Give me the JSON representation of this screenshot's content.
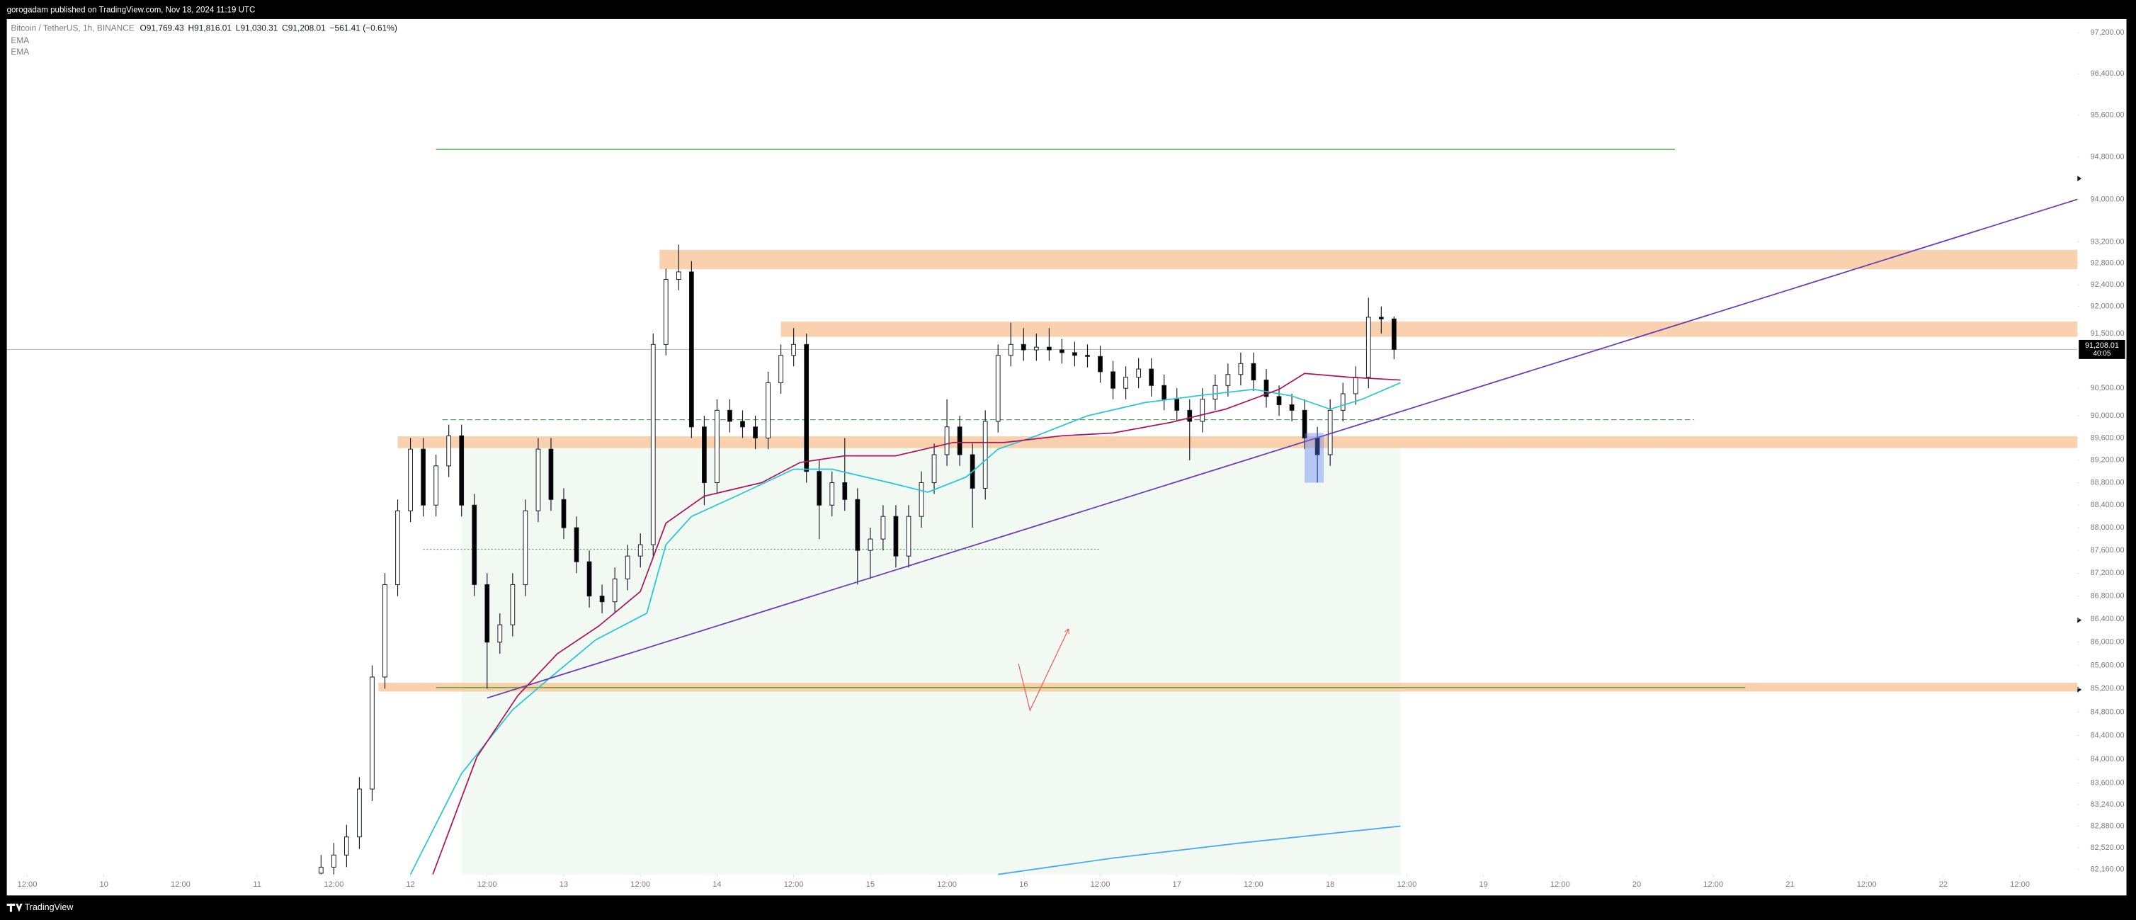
{
  "header": "gorogadam published on TradingView.com, Nov 18, 2024 11:19 UTC",
  "footer": "TradingView",
  "chart_data": {
    "type": "candlestick",
    "symbol": "Bitcoin / TetherUS, 1h, BINANCE",
    "legend_values": [
      "O91,769.43",
      "H91,816.01",
      "L91,030.31",
      "C91,208.01",
      "−561.41 (−0.61%)"
    ],
    "up_color": "#ffffff",
    "down_color": "#000000",
    "wick_color": "#131722",
    "x": [
      46,
      48,
      50,
      52,
      54,
      56,
      58,
      60,
      62,
      64,
      66,
      68,
      70,
      72,
      74,
      76,
      78,
      80,
      82,
      84,
      86,
      88,
      90,
      92,
      94,
      96,
      98,
      100,
      102,
      104,
      106,
      108,
      110,
      112,
      114,
      116,
      118,
      120,
      122,
      124,
      126,
      128,
      130,
      132,
      134,
      136,
      138,
      140,
      142,
      144,
      146,
      148,
      150,
      152,
      154,
      156,
      158,
      160,
      162,
      164,
      166,
      168,
      170,
      172,
      174,
      176,
      178,
      180,
      182,
      184,
      186,
      188,
      190,
      192,
      194,
      196,
      198,
      200,
      202,
      204,
      206,
      208,
      210,
      212,
      214
    ],
    "open": [
      82100,
      82200,
      82400,
      82700,
      83500,
      85400,
      87000,
      88300,
      89400,
      88400,
      89100,
      89640,
      88400,
      87000,
      86000,
      86300,
      87000,
      88300,
      89400,
      88500,
      88000,
      87400,
      86800,
      86700,
      87100,
      87500,
      87700,
      91300,
      92500,
      92640,
      89800,
      88800,
      90100,
      89900,
      89800,
      89600,
      90600,
      91100,
      91300,
      89000,
      88400,
      88800,
      88500,
      87600,
      87800,
      88200,
      87500,
      88200,
      88800,
      89300,
      89800,
      89300,
      88700,
      89900,
      91100,
      91300,
      91200,
      91250,
      91200,
      91150,
      91100,
      91080,
      90800,
      90500,
      90700,
      90850,
      90550,
      90300,
      90100,
      89900,
      90300,
      90550,
      90750,
      90950,
      90650,
      90350,
      90200,
      90100,
      89600,
      89300,
      90100,
      90400,
      90700,
      91800,
      91769.43
    ],
    "high": [
      82400,
      82600,
      82900,
      83700,
      85600,
      87200,
      88500,
      89600,
      89600,
      89300,
      89840,
      89840,
      88600,
      87200,
      86500,
      87200,
      88500,
      89600,
      89600,
      88700,
      88200,
      87600,
      87000,
      87300,
      87700,
      87900,
      91500,
      92700,
      93150,
      92840,
      90000,
      90300,
      90300,
      90100,
      90000,
      90800,
      91300,
      91600,
      91500,
      89200,
      89000,
      89600,
      88700,
      88000,
      88400,
      88400,
      88400,
      89000,
      89500,
      90300,
      90000,
      89500,
      90100,
      91300,
      91700,
      91600,
      91500,
      91600,
      91400,
      91350,
      91300,
      91280,
      91000,
      90900,
      91050,
      91050,
      90750,
      90500,
      90300,
      90500,
      90750,
      90950,
      91150,
      91150,
      90850,
      90550,
      90400,
      90300,
      89800,
      90300,
      90600,
      90900,
      92160,
      92000,
      91816.01
    ],
    "low": [
      82080,
      82080,
      82200,
      82500,
      83300,
      85200,
      86800,
      88100,
      88200,
      88200,
      88900,
      88200,
      86800,
      85200,
      85800,
      86100,
      86800,
      88100,
      88300,
      87800,
      87200,
      86600,
      86500,
      86500,
      86900,
      87300,
      87500,
      91100,
      92300,
      89600,
      88400,
      88600,
      89700,
      89600,
      89400,
      89400,
      90400,
      90900,
      88800,
      87800,
      88200,
      88300,
      87000,
      87100,
      87600,
      87300,
      87300,
      88000,
      88600,
      89100,
      89100,
      88000,
      88500,
      89700,
      90900,
      91000,
      91000,
      91000,
      90950,
      90900,
      90880,
      90600,
      90300,
      90300,
      90500,
      90350,
      90100,
      89900,
      89200,
      89700,
      90100,
      90350,
      90550,
      90450,
      90150,
      90000,
      89900,
      89400,
      88800,
      89100,
      89900,
      90200,
      90500,
      91500,
      91030.31
    ],
    "close": [
      82200,
      82400,
      82700,
      83500,
      85400,
      87000,
      88300,
      89400,
      88400,
      89100,
      89640,
      88400,
      87000,
      86000,
      86300,
      87000,
      88300,
      89400,
      88500,
      88000,
      87400,
      86800,
      86700,
      87100,
      87500,
      87700,
      91300,
      92500,
      92640,
      89800,
      88800,
      90100,
      89900,
      89800,
      89600,
      90600,
      91100,
      91300,
      89000,
      88400,
      88800,
      88500,
      87600,
      87800,
      88200,
      87500,
      88200,
      88800,
      89300,
      89800,
      89300,
      88700,
      89900,
      91100,
      91300,
      91200,
      91250,
      91200,
      91150,
      91100,
      91080,
      90800,
      90500,
      90700,
      90850,
      90550,
      90300,
      90100,
      89900,
      90300,
      90550,
      90750,
      90950,
      90650,
      90350,
      90200,
      90100,
      89600,
      89300,
      90100,
      90400,
      90700,
      91800,
      91769.43,
      91208.01
    ],
    "series": [
      {
        "name": "EMA",
        "color": "#26c6da",
        "x": [
          60,
          68,
          76,
          82,
          89,
          97,
          100,
          104,
          111,
          120,
          126,
          135,
          141,
          147,
          152,
          158,
          166,
          175,
          183,
          192,
          198,
          204,
          209,
          215
        ],
        "values": [
          82080,
          83760,
          84840,
          85400,
          86040,
          86500,
          87700,
          88200,
          88560,
          89040,
          89040,
          88800,
          88630,
          88900,
          89400,
          89640,
          90000,
          90240,
          90360,
          90480,
          90360,
          90120,
          90300,
          90600
        ]
      },
      {
        "name": "EMA",
        "color": "#ad1457",
        "x": [
          63.5,
          70.4,
          76.8,
          83,
          89.5,
          96,
          100,
          106,
          115,
          121,
          128,
          136,
          145,
          153,
          162,
          170,
          179,
          187.6,
          196,
          200,
          207,
          215
        ],
        "values": [
          82080,
          84040,
          85080,
          85800,
          86280,
          86880,
          88080,
          88560,
          88800,
          89160,
          89280,
          89280,
          89520,
          89520,
          89640,
          89690,
          89880,
          90120,
          90480,
          90770,
          90700,
          90650
        ]
      },
      {
        "color": "#42a5f5",
        "x": [
          152,
          170,
          190,
          215
        ],
        "values": [
          82080,
          82350,
          82600,
          82880
        ]
      }
    ],
    "last_price": 91208.01,
    "last_price_label": "91,208.01",
    "countdown": "40:05",
    "last_price_color": "#b2b5be",
    "zones": [
      {
        "x": [
          99,
          321
        ],
        "y": [
          92690,
          93050
        ],
        "color": "#f8c9a0"
      },
      {
        "x": [
          118,
          321
        ],
        "y": [
          91440,
          91720
        ],
        "color": "#f8c9a0"
      },
      {
        "x": [
          58,
          321
        ],
        "y": [
          89420,
          89630
        ],
        "color": "#f8c9a0"
      },
      {
        "x": [
          55,
          321
        ],
        "y": [
          85150,
          85300
        ],
        "color": "#f8c9a0"
      }
    ],
    "hlines": [
      {
        "x": [
          64,
          258
        ],
        "y": 94950,
        "color": "#43a047",
        "style": "solid"
      },
      {
        "x": [
          65,
          261
        ],
        "y": 89930,
        "color": "#43a047",
        "style": "dashed"
      },
      {
        "x": [
          62,
          168
        ],
        "y": 87620,
        "color": "#43a047",
        "style": "dotted"
      },
      {
        "x": [
          64,
          269
        ],
        "y": 85220,
        "color": "#689f38",
        "style": "solid"
      }
    ],
    "trendline": {
      "x": [
        72,
        321
      ],
      "y": [
        85040,
        94000
      ],
      "color": "#673ab7"
    },
    "area": {
      "x": [
        68,
        215
      ],
      "y": [
        82070,
        89500
      ],
      "color": "#e8f5e9"
    },
    "box": {
      "x": [
        200,
        203
      ],
      "y": [
        88800,
        89690
      ],
      "color": "#5c7cfa"
    },
    "arrow": {
      "x": [
        155.2,
        157,
        163
      ],
      "y": [
        85630,
        84830,
        86220
      ],
      "color": "#ef5350"
    },
    "log_scale": true,
    "ylim": [
      82070,
      97466
    ],
    "yticks": [
      {
        "value": 97200,
        "label": "97,200.00"
      },
      {
        "value": 96400,
        "label": "96,400.00"
      },
      {
        "value": 95600,
        "label": "95,600.00"
      },
      {
        "value": 94800,
        "label": "94,800.00"
      },
      {
        "value": 94000,
        "label": "94,000.00"
      },
      {
        "value": 93200,
        "label": "93,200.00"
      },
      {
        "value": 92800,
        "label": "92,800.00"
      },
      {
        "value": 92400,
        "label": "92,400.00"
      },
      {
        "value": 92000,
        "label": "92,000.00"
      },
      {
        "value": 91500,
        "label": "91,500.00"
      },
      {
        "value": 90500,
        "label": "90,500.00"
      },
      {
        "value": 90000,
        "label": "90,000.00"
      },
      {
        "value": 89600,
        "label": "89,600.00"
      },
      {
        "value": 89200,
        "label": "89,200.00"
      },
      {
        "value": 88800,
        "label": "88,800.00"
      },
      {
        "value": 88400,
        "label": "88,400.00"
      },
      {
        "value": 88000,
        "label": "88,000.00"
      },
      {
        "value": 87600,
        "label": "87,600.00"
      },
      {
        "value": 87200,
        "label": "87,200.00"
      },
      {
        "value": 86800,
        "label": "86,800.00"
      },
      {
        "value": 86400,
        "label": "86,400.00"
      },
      {
        "value": 86000,
        "label": "86,000.00"
      },
      {
        "value": 85600,
        "label": "85,600.00"
      },
      {
        "value": 85200,
        "label": "85,200.00"
      },
      {
        "value": 84800,
        "label": "84,800.00"
      },
      {
        "value": 84400,
        "label": "84,400.00"
      },
      {
        "value": 84000,
        "label": "84,000.00"
      },
      {
        "value": 83600,
        "label": "83,600.00"
      },
      {
        "value": 83240,
        "label": "83,240.00"
      },
      {
        "value": 82880,
        "label": "82,880.00"
      },
      {
        "value": 82520,
        "label": "82,520.00"
      },
      {
        "value": 82160,
        "label": "82,160.00"
      }
    ],
    "xlim": [
      -3.2,
      321
    ],
    "xticks": [
      {
        "value": 0,
        "label": "12:00"
      },
      {
        "value": 12,
        "label": "10"
      },
      {
        "value": 24,
        "label": "12:00"
      },
      {
        "value": 36,
        "label": "11"
      },
      {
        "value": 48,
        "label": "12:00"
      },
      {
        "value": 60,
        "label": "12"
      },
      {
        "value": 72,
        "label": "12:00"
      },
      {
        "value": 84,
        "label": "13"
      },
      {
        "value": 96,
        "label": "12:00"
      },
      {
        "value": 108,
        "label": "14"
      },
      {
        "value": 120,
        "label": "12:00"
      },
      {
        "value": 132,
        "label": "15"
      },
      {
        "value": 144,
        "label": "12:00"
      },
      {
        "value": 156,
        "label": "16"
      },
      {
        "value": 168,
        "label": "12:00"
      },
      {
        "value": 180,
        "label": "17"
      },
      {
        "value": 192,
        "label": "12:00"
      },
      {
        "value": 204,
        "label": "18"
      },
      {
        "value": 216,
        "label": "12:00"
      },
      {
        "value": 228,
        "label": "19"
      },
      {
        "value": 240,
        "label": "12:00"
      },
      {
        "value": 252,
        "label": "20"
      },
      {
        "value": 264,
        "label": "12:00"
      },
      {
        "value": 276,
        "label": "21"
      },
      {
        "value": 288,
        "label": "12:00"
      },
      {
        "value": 300,
        "label": "22"
      },
      {
        "value": 312,
        "label": "12:00"
      }
    ]
  }
}
